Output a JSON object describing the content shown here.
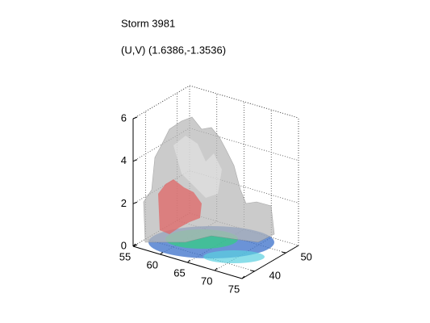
{
  "chart_data": {
    "type": "isosurface",
    "title": "Storm 3981",
    "subtitle": "(U,V) (1.6386,-1.3536)",
    "xlim": [
      55,
      75
    ],
    "xticks": [
      55,
      60,
      65,
      70,
      75
    ],
    "ylim": [
      36,
      54
    ],
    "yticks": [
      40,
      50
    ],
    "zlim": [
      0,
      6
    ],
    "zticks": [
      0,
      2,
      4,
      6
    ],
    "grid": true
  }
}
